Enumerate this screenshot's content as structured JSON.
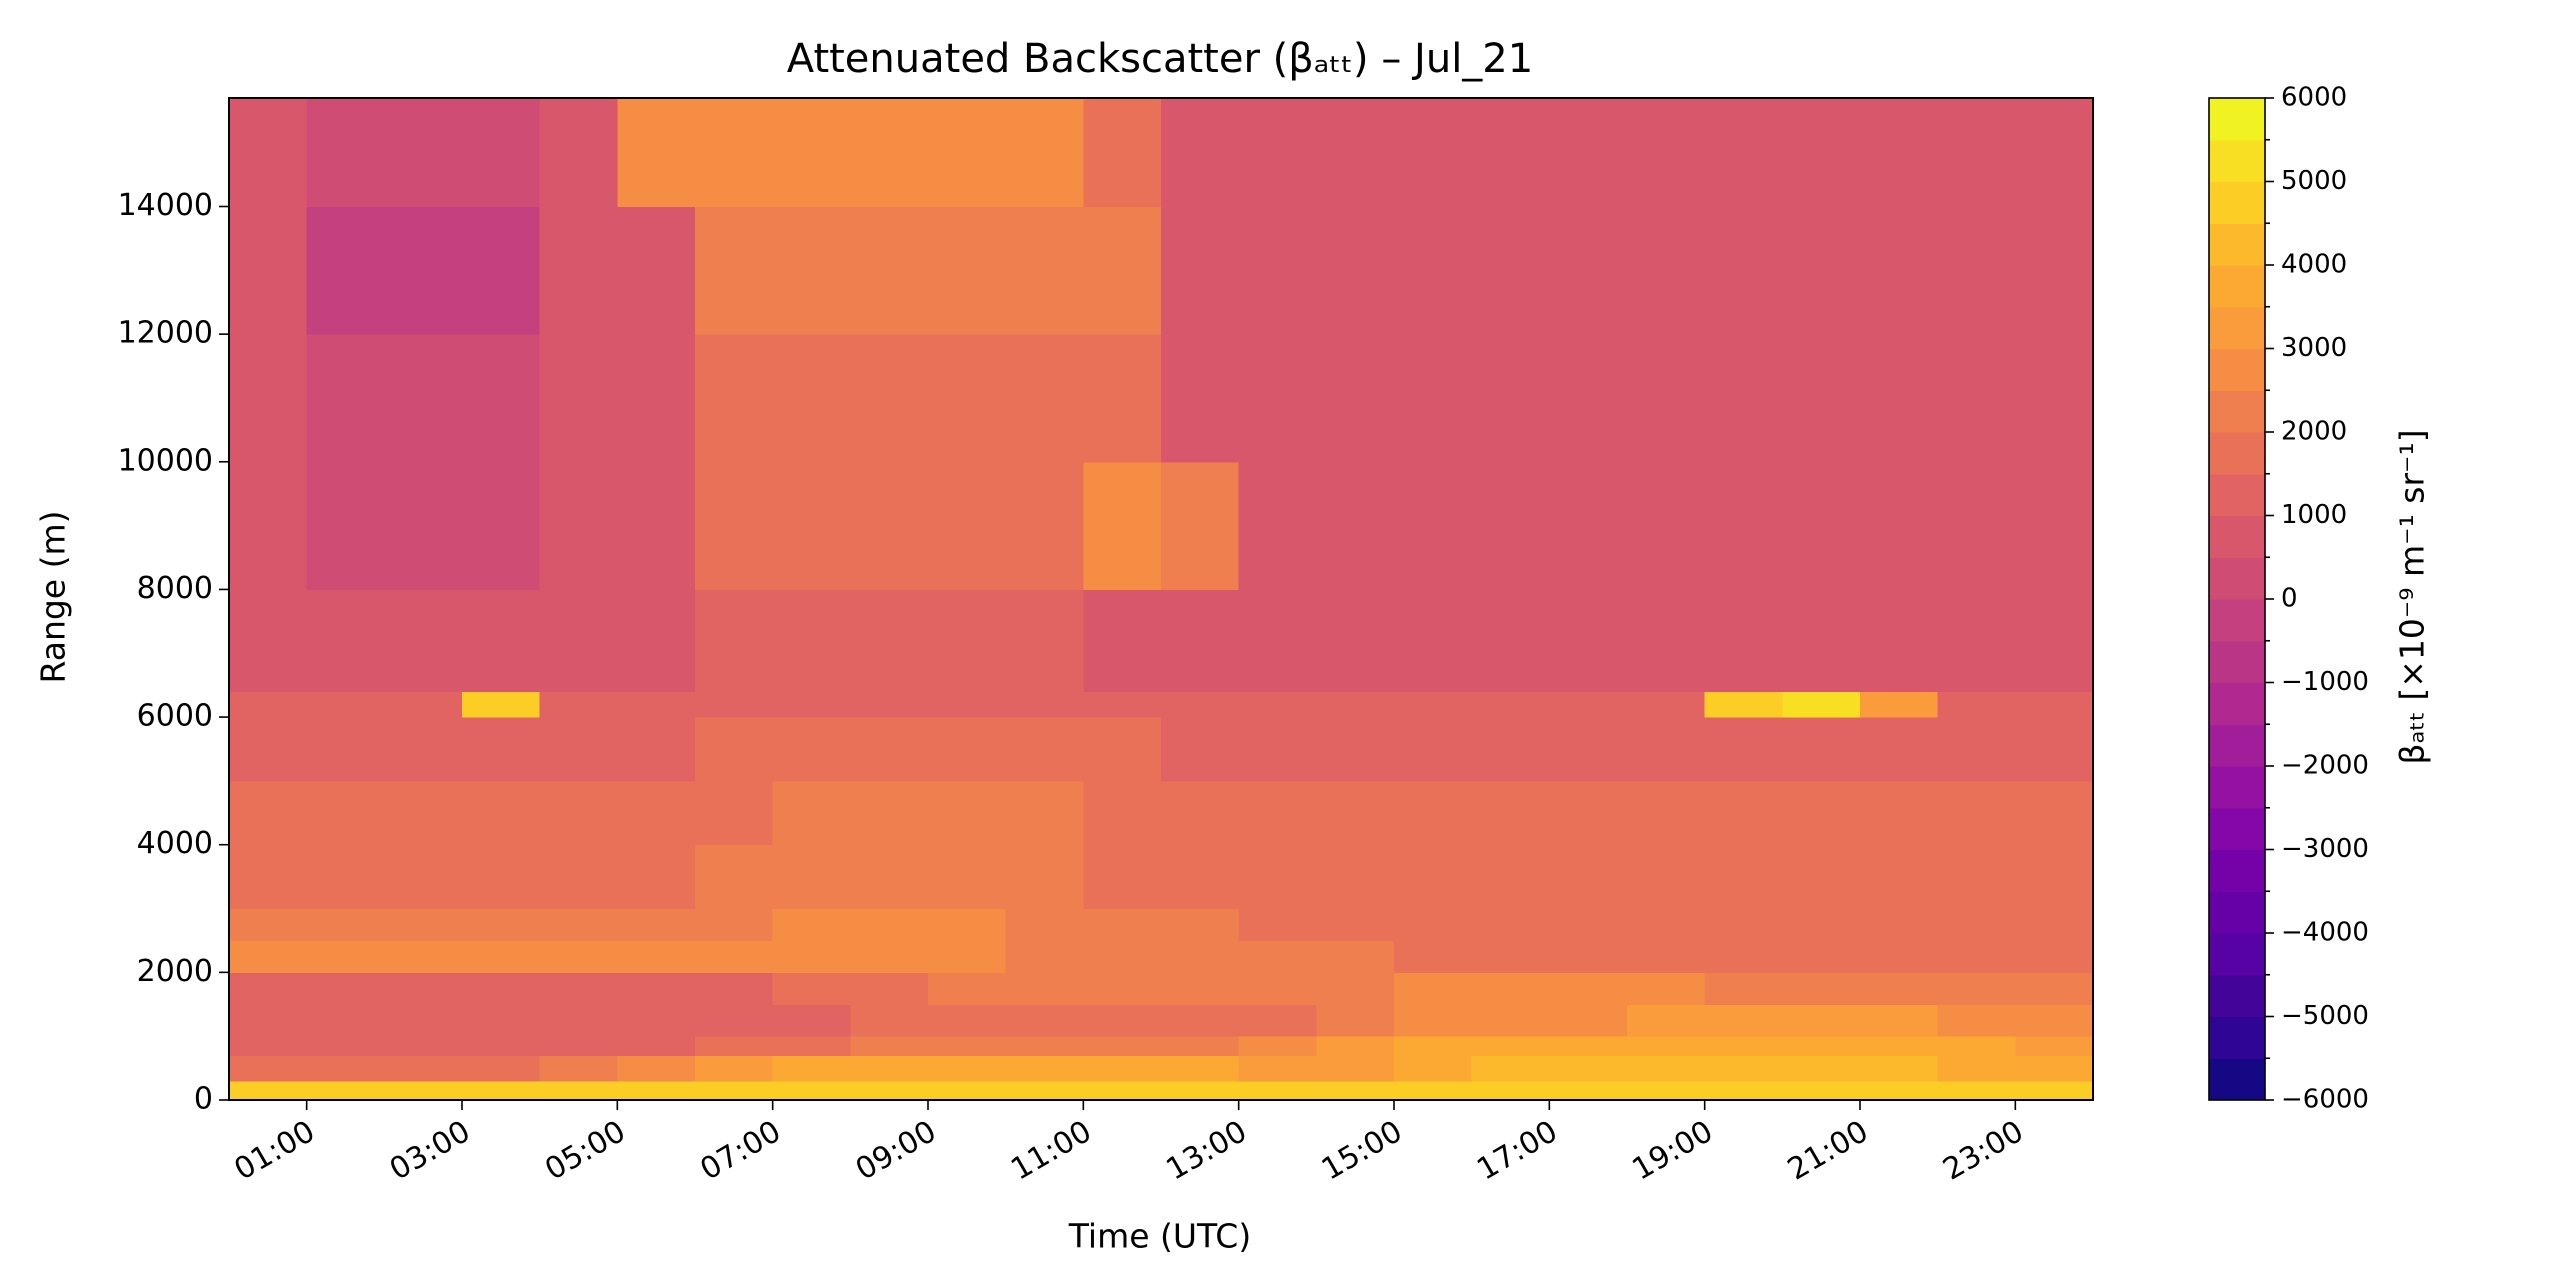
{
  "chart_data": {
    "type": "heatmap",
    "title": "Attenuated Backscatter (βₐₜₜ) – Jul_21",
    "x_label": "Time (UTC)",
    "y_label": "Range (m)",
    "colorbar_label": "βₐₜₜ [×10⁻⁹ m⁻¹ sr⁻¹]",
    "x_edges": [
      0,
      1,
      2,
      3,
      4,
      5,
      6,
      7,
      8,
      9,
      10,
      11,
      12,
      13,
      14,
      15,
      16,
      17,
      18,
      19,
      20,
      21,
      22,
      23,
      24
    ],
    "y_edges": [
      0,
      300,
      700,
      1000,
      1500,
      2000,
      2500,
      3000,
      4000,
      5000,
      6000,
      6400,
      8000,
      10000,
      12000,
      14000,
      15700
    ],
    "z": [
      [
        4500,
        4500,
        4500,
        4500,
        4500,
        4500,
        4500,
        4500,
        4500,
        4500,
        4500,
        4500,
        4500,
        4500,
        4500,
        4500,
        4500,
        4500,
        4500,
        4500,
        4500,
        4500,
        4500,
        4500
      ],
      [
        1500,
        1500,
        1500,
        1800,
        2000,
        2500,
        3000,
        3500,
        3500,
        3500,
        3500,
        3500,
        3500,
        3000,
        3000,
        3500,
        4000,
        4000,
        4000,
        4000,
        4000,
        4000,
        3500,
        3500
      ],
      [
        1000,
        1000,
        1000,
        1000,
        1000,
        1200,
        1500,
        1800,
        2000,
        2000,
        2000,
        2000,
        2000,
        2500,
        3000,
        3500,
        3500,
        3500,
        3500,
        3500,
        3800,
        3500,
        3500,
        3000
      ],
      [
        1000,
        1000,
        1000,
        1000,
        1000,
        1000,
        1000,
        1200,
        1500,
        1500,
        1500,
        1500,
        1500,
        1500,
        2000,
        2500,
        2800,
        2800,
        3000,
        3000,
        3000,
        3000,
        2800,
        2500
      ],
      [
        1200,
        1200,
        1200,
        1200,
        1200,
        1200,
        1200,
        1500,
        1800,
        2000,
        2000,
        2000,
        2000,
        2000,
        2200,
        2500,
        2500,
        2500,
        2500,
        2200,
        2200,
        2000,
        2000,
        2000
      ],
      [
        2500,
        2500,
        2500,
        2500,
        2500,
        2500,
        2500,
        2500,
        2500,
        2500,
        2200,
        2000,
        2000,
        2000,
        2000,
        1800,
        1500,
        1500,
        1500,
        1500,
        1500,
        1500,
        1500,
        1800
      ],
      [
        2200,
        2200,
        2200,
        2200,
        2200,
        2200,
        2300,
        2500,
        2500,
        2500,
        2200,
        2000,
        2000,
        1800,
        1800,
        1800,
        1500,
        1500,
        1500,
        1500,
        1500,
        1500,
        1500,
        1500
      ],
      [
        1800,
        1800,
        1800,
        1800,
        1800,
        1800,
        2000,
        2200,
        2400,
        2200,
        2000,
        1800,
        1800,
        1800,
        1800,
        1800,
        1800,
        1800,
        1800,
        1800,
        1800,
        1800,
        1800,
        1800
      ],
      [
        1500,
        1500,
        1500,
        1500,
        1500,
        1500,
        1600,
        2000,
        2000,
        2000,
        2000,
        1600,
        1500,
        1500,
        1500,
        1500,
        1500,
        1500,
        1500,
        1500,
        1500,
        1500,
        1500,
        1500
      ],
      [
        1400,
        1400,
        1400,
        1400,
        1400,
        1400,
        1500,
        1800,
        1800,
        1800,
        1800,
        1500,
        1400,
        1400,
        1400,
        1400,
        1400,
        1400,
        1400,
        1400,
        1400,
        1400,
        1400,
        1400
      ],
      [
        1200,
        1200,
        1200,
        4500,
        1200,
        1200,
        1200,
        1400,
        1400,
        1400,
        1400,
        1200,
        1200,
        1200,
        1200,
        1200,
        1200,
        1200,
        1200,
        4500,
        5000,
        3000,
        1200,
        1200
      ],
      [
        600,
        600,
        600,
        600,
        600,
        600,
        1200,
        1200,
        1200,
        1200,
        1200,
        800,
        600,
        600,
        600,
        600,
        600,
        600,
        600,
        600,
        600,
        600,
        600,
        600
      ],
      [
        600,
        300,
        300,
        300,
        600,
        600,
        1500,
        1500,
        1500,
        1500,
        1500,
        2500,
        2000,
        600,
        600,
        600,
        600,
        600,
        600,
        600,
        600,
        600,
        600,
        600
      ],
      [
        700,
        0,
        0,
        0,
        700,
        700,
        1800,
        1800,
        1800,
        1800,
        1800,
        1500,
        700,
        700,
        700,
        700,
        700,
        700,
        700,
        700,
        700,
        700,
        700,
        700
      ],
      [
        700,
        -200,
        -200,
        -200,
        700,
        700,
        2000,
        2000,
        2000,
        2000,
        2000,
        2000,
        700,
        700,
        700,
        700,
        700,
        700,
        700,
        700,
        700,
        700,
        700,
        700
      ],
      [
        900,
        300,
        300,
        300,
        900,
        2500,
        2500,
        2500,
        2500,
        2500,
        2500,
        1500,
        900,
        900,
        900,
        900,
        900,
        900,
        900,
        900,
        900,
        900,
        900,
        900
      ]
    ],
    "xlim": [
      0,
      24
    ],
    "ylim": [
      0,
      15700
    ],
    "zlim": [
      -6000,
      6000
    ],
    "xticks": [
      {
        "value": 1,
        "label": "01:00"
      },
      {
        "value": 3,
        "label": "03:00"
      },
      {
        "value": 5,
        "label": "05:00"
      },
      {
        "value": 7,
        "label": "07:00"
      },
      {
        "value": 9,
        "label": "09:00"
      },
      {
        "value": 11,
        "label": "11:00"
      },
      {
        "value": 13,
        "label": "13:00"
      },
      {
        "value": 15,
        "label": "15:00"
      },
      {
        "value": 17,
        "label": "17:00"
      },
      {
        "value": 19,
        "label": "19:00"
      },
      {
        "value": 21,
        "label": "21:00"
      },
      {
        "value": 23,
        "label": "23:00"
      }
    ],
    "yticks": [
      0,
      2000,
      4000,
      6000,
      8000,
      10000,
      12000,
      14000
    ],
    "zticks": [
      {
        "value": -6000,
        "label": "−6000"
      },
      {
        "value": -5000,
        "label": "−5000"
      },
      {
        "value": -4000,
        "label": "−4000"
      },
      {
        "value": -3000,
        "label": "−3000"
      },
      {
        "value": -2000,
        "label": "−2000"
      },
      {
        "value": -1000,
        "label": "−1000"
      },
      0,
      1000,
      2000,
      3000,
      4000,
      5000,
      6000
    ],
    "colors": [
      "#160784",
      "#2e0595",
      "#420499",
      "#5602a4",
      "#6600a7",
      "#7501a8",
      "#8408a7",
      "#9511a1",
      "#a21d9a",
      "#b02991",
      "#bb3587",
      "#c5407e",
      "#cf4c74",
      "#d8576b",
      "#e16462",
      "#e97158",
      "#f07f4f",
      "#f68d45",
      "#fa9b3c",
      "#fca934",
      "#fdb92c",
      "#fccd25",
      "#f8df24",
      "#f0f321"
    ]
  }
}
